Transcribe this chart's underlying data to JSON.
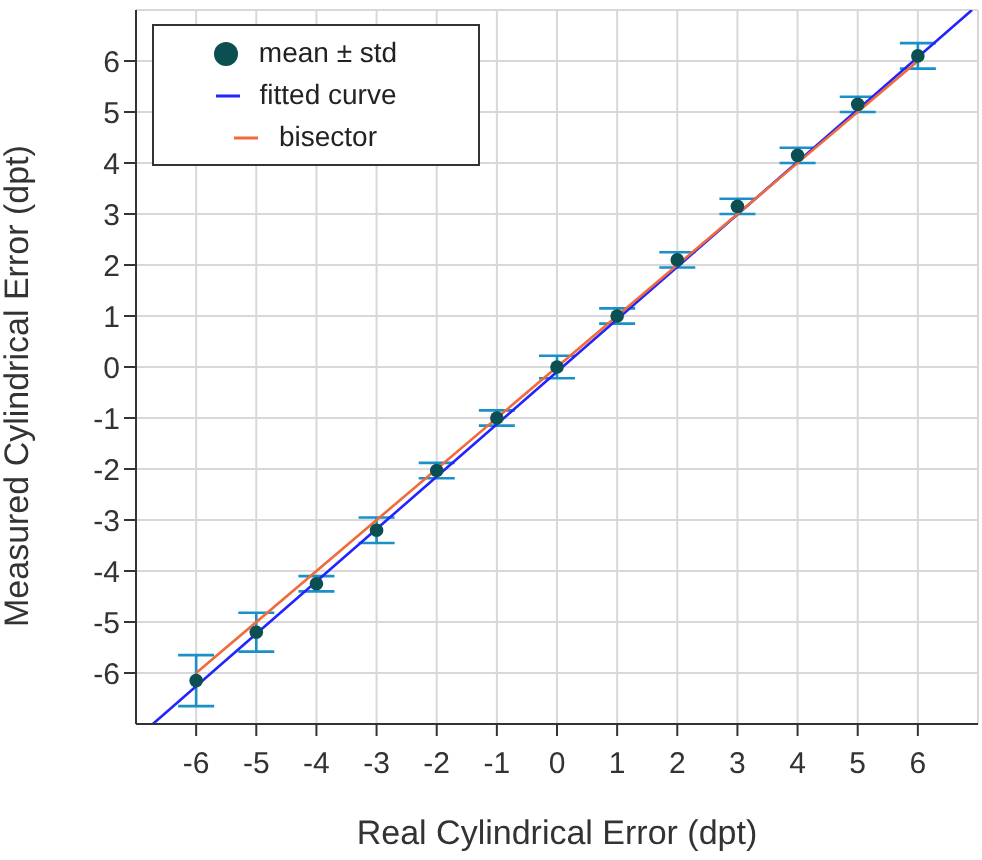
{
  "chart_data": {
    "type": "scatter",
    "xlabel": "Real Cylindrical Error (dpt)",
    "ylabel": "Measured Cylindrical Error (dpt)",
    "x": [
      -6,
      -5,
      -4,
      -3,
      -2,
      -1,
      0,
      1,
      2,
      3,
      4,
      5,
      6
    ],
    "series": [
      {
        "name": "mean ± std",
        "color": "#0b4f52",
        "marker": "circle",
        "values": [
          -6.15,
          -5.2,
          -4.25,
          -3.2,
          -2.03,
          -1.0,
          0.0,
          1.0,
          2.1,
          3.15,
          4.15,
          5.15,
          6.1
        ],
        "errors": [
          0.5,
          0.38,
          0.15,
          0.25,
          0.15,
          0.15,
          0.22,
          0.15,
          0.15,
          0.15,
          0.15,
          0.15,
          0.25
        ]
      },
      {
        "name": "fitted curve",
        "type": "line",
        "color": "#2323ff",
        "marker": "none",
        "line_style": "solid",
        "x": [
          -6.72,
          6.9
        ],
        "values": [
          -7,
          7
        ]
      },
      {
        "name": "bisector",
        "type": "line",
        "color": "#f06a3a",
        "marker": "none",
        "line_style": "solid",
        "x": [
          -6,
          6
        ],
        "values": [
          -6,
          6
        ]
      }
    ],
    "xlim": [
      -7,
      7
    ],
    "ylim": [
      -7,
      7
    ],
    "xticks": [
      -6,
      -5,
      -4,
      -3,
      -2,
      -1,
      0,
      1,
      2,
      3,
      4,
      5,
      6
    ],
    "yticks": [
      -6,
      -5,
      -4,
      -3,
      -2,
      -1,
      0,
      1,
      2,
      3,
      4,
      5,
      6
    ],
    "grid": true,
    "legend": "top left"
  }
}
